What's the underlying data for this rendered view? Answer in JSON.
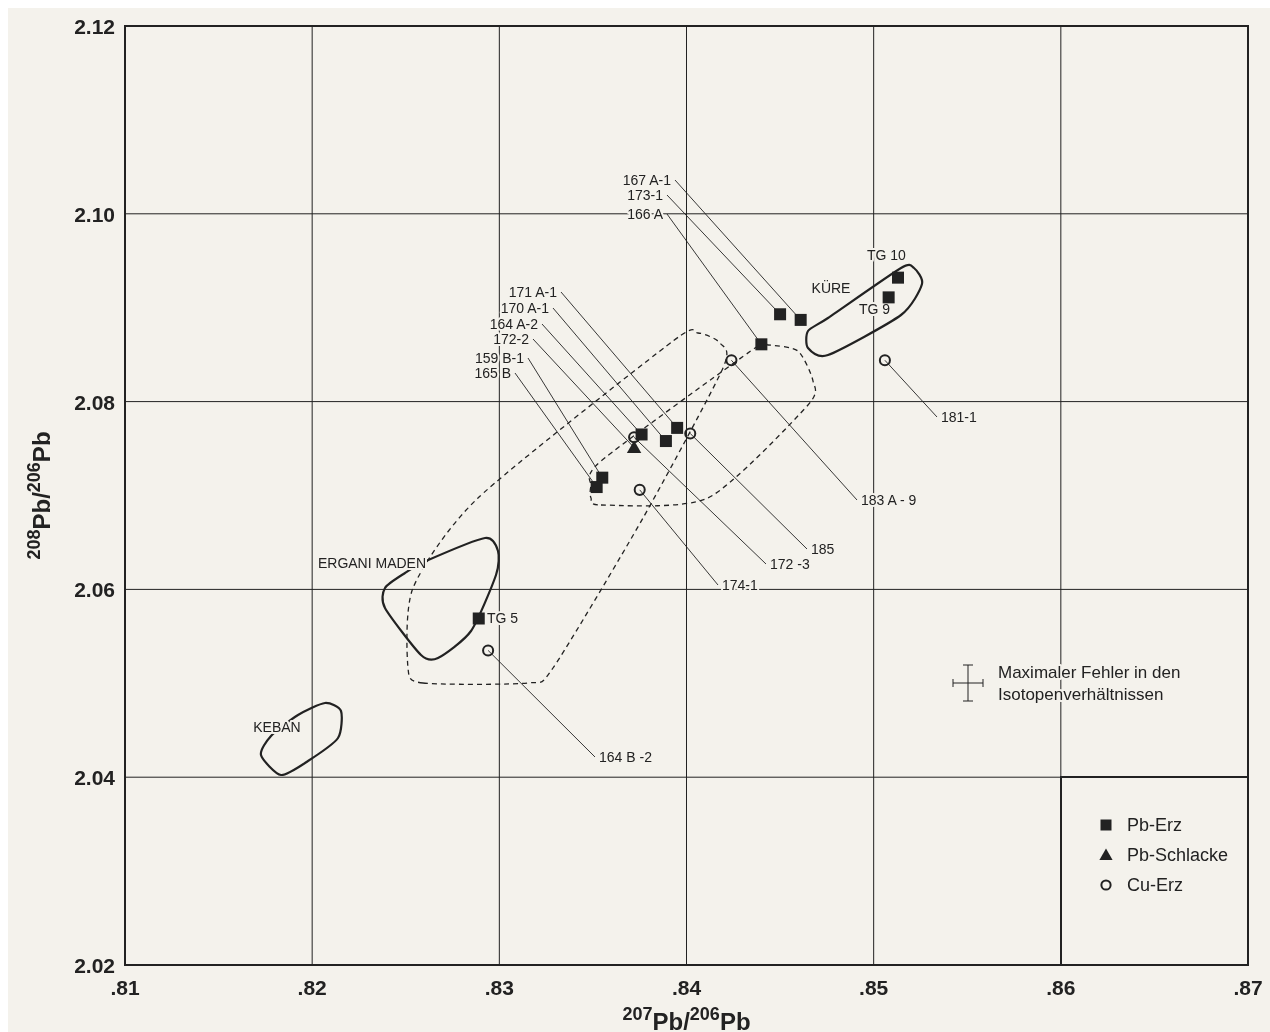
{
  "chart_data": {
    "type": "scatter",
    "xlabel": "$^{207}$Pb/$^{206}$Pb",
    "ylabel": "$^{208}$Pb/$^{206}$Pb",
    "xlim": [
      0.81,
      0.87
    ],
    "ylim": [
      2.02,
      2.12
    ],
    "xticks": [
      {
        "value": 0.81,
        "label": ".81"
      },
      {
        "value": 0.82,
        "label": ".82"
      },
      {
        "value": 0.83,
        "label": ".83"
      },
      {
        "value": 0.84,
        "label": ".84"
      },
      {
        "value": 0.85,
        "label": ".85"
      },
      {
        "value": 0.86,
        "label": ".86"
      },
      {
        "value": 0.87,
        "label": ".87"
      }
    ],
    "yticks": [
      {
        "value": 2.02,
        "label": "2.02"
      },
      {
        "value": 2.04,
        "label": "2.04"
      },
      {
        "value": 2.06,
        "label": "2.06"
      },
      {
        "value": 2.08,
        "label": "2.08"
      },
      {
        "value": 2.1,
        "label": "2.10"
      },
      {
        "value": 2.12,
        "label": "2.12"
      }
    ],
    "grid": true,
    "legend": "bottom right",
    "series": [
      {
        "name": "Pb-Erz",
        "color": "#222222",
        "marker": "square",
        "x": [
          0.8461,
          0.845,
          0.844,
          0.8513,
          0.8508,
          0.8376,
          0.8389,
          0.8395,
          0.8355,
          0.8352,
          0.8289
        ],
        "values": [
          2.0887,
          2.0893,
          2.0861,
          2.0932,
          2.0911,
          2.0765,
          2.0758,
          2.0772,
          2.0719,
          2.0709,
          2.0569
        ]
      },
      {
        "name": "Pb-Schlacke",
        "color": "#222222",
        "marker": "triangle",
        "x": [
          0.8372
        ],
        "values": [
          2.0751
        ]
      },
      {
        "name": "Cu-Erz",
        "color": "#222222",
        "marker": "circle",
        "x": [
          0.8424,
          0.8402,
          0.8372,
          0.8375,
          0.8506,
          0.8294
        ],
        "values": [
          2.0844,
          2.0766,
          2.0762,
          2.0706,
          2.0844,
          2.0535
        ]
      }
    ],
    "annotations": [
      {
        "text": "167 A-1",
        "x": 0.8461,
        "y": 2.0887
      },
      {
        "text": "173-1",
        "x": 0.845,
        "y": 2.0893
      },
      {
        "text": "166 A",
        "x": 0.844,
        "y": 2.0861
      },
      {
        "text": "TG 10",
        "x": 0.8513,
        "y": 2.0932
      },
      {
        "text": "TG 9",
        "x": 0.8508,
        "y": 2.0911
      },
      {
        "text": "171 A-1",
        "x": 0.8395,
        "y": 2.0772
      },
      {
        "text": "170 A-1",
        "x": 0.8389,
        "y": 2.0758
      },
      {
        "text": "164 A-2",
        "x": 0.8376,
        "y": 2.0765
      },
      {
        "text": "172-2",
        "x": 0.8372,
        "y": 2.0751
      },
      {
        "text": "159 B-1",
        "x": 0.8355,
        "y": 2.0719
      },
      {
        "text": "165 B",
        "x": 0.8352,
        "y": 2.0709
      },
      {
        "text": "183 A - 9",
        "x": 0.8424,
        "y": 2.0844
      },
      {
        "text": "185",
        "x": 0.8402,
        "y": 2.0766
      },
      {
        "text": "172 -3",
        "x": 0.8372,
        "y": 2.0762
      },
      {
        "text": "174-1",
        "x": 0.8375,
        "y": 2.0706
      },
      {
        "text": "181-1",
        "x": 0.8506,
        "y": 2.0844
      },
      {
        "text": "TG 5",
        "x": 0.8289,
        "y": 2.0569
      },
      {
        "text": "164 B -2",
        "x": 0.8294,
        "y": 2.0535
      },
      "KÜRE",
      "ERGANI MADEN",
      "KEBAN",
      "Maximaler Fehler in den Isotopenverhältnissen"
    ]
  }
}
